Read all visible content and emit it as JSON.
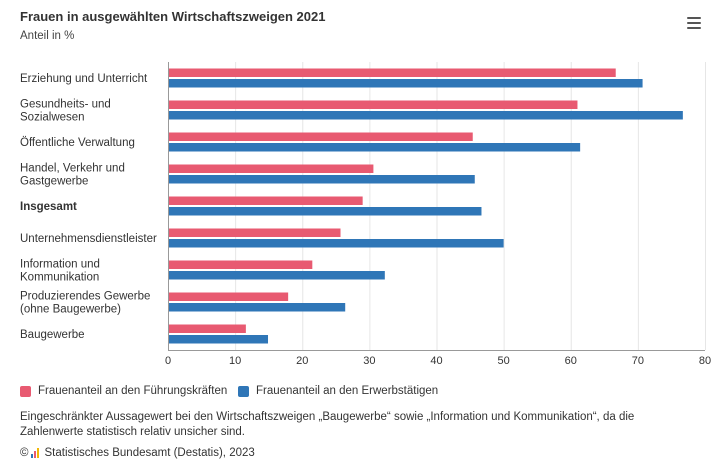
{
  "header": {
    "title": "Frauen in ausgewählten Wirtschaftszweigen 2021",
    "subtitle": "Anteil in %"
  },
  "colors": {
    "series1": "#e85a71",
    "series2": "#2f76b7",
    "grid": "#e6e6e6",
    "axis": "#999999"
  },
  "legend": {
    "item1": "Frauenanteil an den Führungskräften",
    "item2": "Frauenanteil an den Erwerbstätigen"
  },
  "footer": {
    "note": "Eingeschränkter Aussagewert bei den Wirtschaftszweigen „Baugewerbe“ sowie „Information und Kommunikation“, da die Zahlenwerte statistisch relativ unsicher sind.",
    "copyright": "©",
    "source": "Statistisches Bundesamt (Destatis), 2023"
  },
  "chart_data": {
    "type": "bar",
    "orientation": "horizontal",
    "title": "Frauen in ausgewählten Wirtschaftszweigen 2021",
    "subtitle": "Anteil in %",
    "categories": [
      [
        "Erziehung und Unterricht"
      ],
      [
        "Gesundheits- und",
        "Sozialwesen"
      ],
      [
        "Öffentliche Verwaltung"
      ],
      [
        "Handel, Verkehr und",
        "Gastgewerbe"
      ],
      [
        "Insgesamt"
      ],
      [
        "Unternehmensdienstleister"
      ],
      [
        "Information und",
        "Kommunikation"
      ],
      [
        "Produzierendes Gewerbe",
        "(ohne Baugewerbe)"
      ],
      [
        "Baugewerbe"
      ]
    ],
    "bold_category_index": 4,
    "series": [
      {
        "name": "Frauenanteil an den Führungskräften",
        "values": [
          66.7,
          61.0,
          45.4,
          30.6,
          29.0,
          25.7,
          21.5,
          17.9,
          11.6
        ]
      },
      {
        "name": "Frauenanteil an den Erwerbstätigen",
        "values": [
          70.7,
          76.7,
          61.4,
          45.7,
          46.7,
          50.0,
          32.3,
          26.4,
          14.9
        ]
      }
    ],
    "xlim": [
      0,
      80
    ],
    "xticks": [
      0,
      10,
      20,
      30,
      40,
      50,
      60,
      70,
      80
    ],
    "grid": true,
    "legend_position": "bottom-left"
  }
}
